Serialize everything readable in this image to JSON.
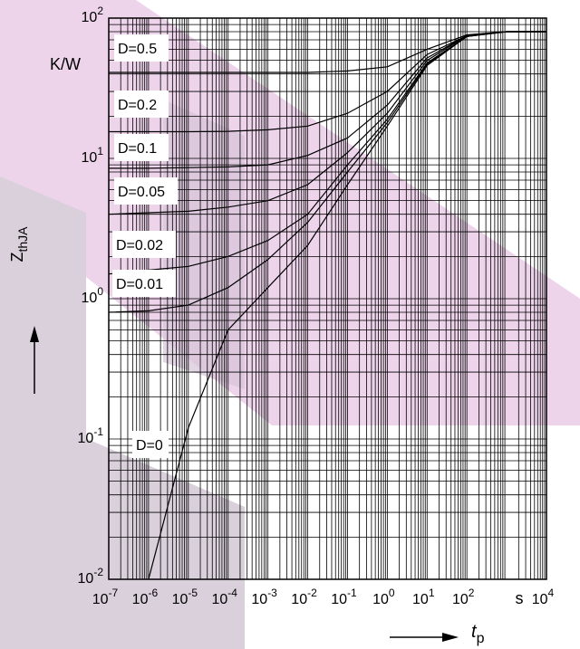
{
  "chart_data": {
    "type": "line",
    "ylabel": {
      "text": "Z",
      "subscript": "thJA"
    },
    "yunit": "K/W",
    "xlabel": {
      "text": "t",
      "subscript": "p"
    },
    "xunit": "s",
    "log_x": true,
    "log_y": true,
    "grid": true,
    "color": "#000000",
    "xlim": [
      1e-07,
      10000
    ],
    "ylim": [
      0.01,
      100
    ],
    "xticks": [
      {
        "value": 1e-07,
        "label": "10",
        "exponent": "-7"
      },
      {
        "value": 1e-06,
        "label": "10",
        "exponent": "-6"
      },
      {
        "value": 1e-05,
        "label": "10",
        "exponent": "-5"
      },
      {
        "value": 0.0001,
        "label": "10",
        "exponent": "-4"
      },
      {
        "value": 0.001,
        "label": "10",
        "exponent": "-3"
      },
      {
        "value": 0.01,
        "label": "10",
        "exponent": "-2"
      },
      {
        "value": 0.1,
        "label": "10",
        "exponent": "-1"
      },
      {
        "value": 1,
        "label": "10",
        "exponent": "0"
      },
      {
        "value": 10,
        "label": "10",
        "exponent": "1"
      },
      {
        "value": 100,
        "label": "10",
        "exponent": "2"
      },
      {
        "value": 10000,
        "label": "10",
        "exponent": "4"
      }
    ],
    "yticks": [
      {
        "value": 0.01,
        "label": "10",
        "exponent": "-2"
      },
      {
        "value": 0.1,
        "label": "10",
        "exponent": "-1"
      },
      {
        "value": 1,
        "label": "10",
        "exponent": "0"
      },
      {
        "value": 10,
        "label": "10",
        "exponent": "1"
      },
      {
        "value": 100,
        "label": "10",
        "exponent": "2"
      }
    ],
    "x": [
      1e-07,
      1e-06,
      1e-05,
      0.0001,
      0.001,
      0.01,
      0.1,
      1,
      10,
      100,
      1000,
      10000
    ],
    "series": [
      {
        "name": "D=0.5",
        "values": [
          41,
          41,
          41,
          41,
          41,
          41,
          42,
          45,
          60,
          76,
          80,
          80
        ]
      },
      {
        "name": "D=0.2",
        "values": [
          15.5,
          15.5,
          15.5,
          15.6,
          16,
          17,
          21,
          30,
          55,
          75,
          80,
          80
        ]
      },
      {
        "name": "D=0.1",
        "values": [
          8.5,
          8.5,
          8.6,
          8.7,
          9,
          10.5,
          14,
          24,
          52,
          75,
          80,
          80
        ]
      },
      {
        "name": "D=0.05",
        "values": [
          4,
          4.1,
          4.2,
          4.5,
          5,
          6.5,
          11,
          21,
          50,
          75,
          80,
          80
        ]
      },
      {
        "name": "D=0.02",
        "values": [
          1.5,
          1.6,
          1.7,
          2,
          2.6,
          4,
          9,
          19,
          48,
          74,
          80,
          80
        ]
      },
      {
        "name": "D=0.01",
        "values": [
          0.8,
          0.82,
          0.9,
          1.2,
          1.9,
          3.5,
          8,
          18,
          47,
          74,
          80,
          80
        ]
      },
      {
        "name": "D=0",
        "values": [
          null,
          0.01,
          0.12,
          0.6,
          1.2,
          2.4,
          6.5,
          17,
          46,
          74,
          80,
          80
        ]
      }
    ]
  }
}
